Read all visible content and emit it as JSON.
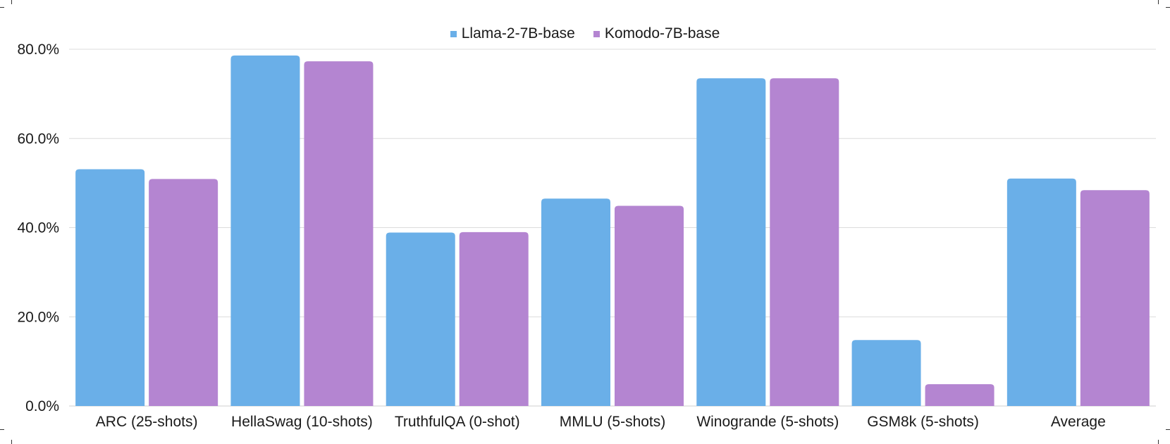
{
  "chart_data": {
    "type": "bar",
    "categories": [
      "ARC (25-shots)",
      "HellaSwag (10-shots)",
      "TruthfulQA (0-shot)",
      "MMLU (5-shots)",
      "Winogrande (5-shots)",
      "GSM8k (5-shots)",
      "Average"
    ],
    "series": [
      {
        "name": "Llama-2-7B-base",
        "color": "#6aafe8",
        "values": [
          53.1,
          78.6,
          38.9,
          46.5,
          73.5,
          14.8,
          51.0
        ]
      },
      {
        "name": "Komodo-7B-base",
        "color": "#b485d1",
        "values": [
          50.9,
          77.3,
          39.0,
          44.9,
          73.5,
          4.9,
          48.4
        ]
      }
    ],
    "yticks": [
      "0.0%",
      "20.0%",
      "40.0%",
      "60.0%",
      "80.0%"
    ],
    "ylim": [
      0,
      80
    ],
    "grid": true,
    "legend_position": "top-center",
    "title": "",
    "xlabel": "",
    "ylabel": ""
  }
}
